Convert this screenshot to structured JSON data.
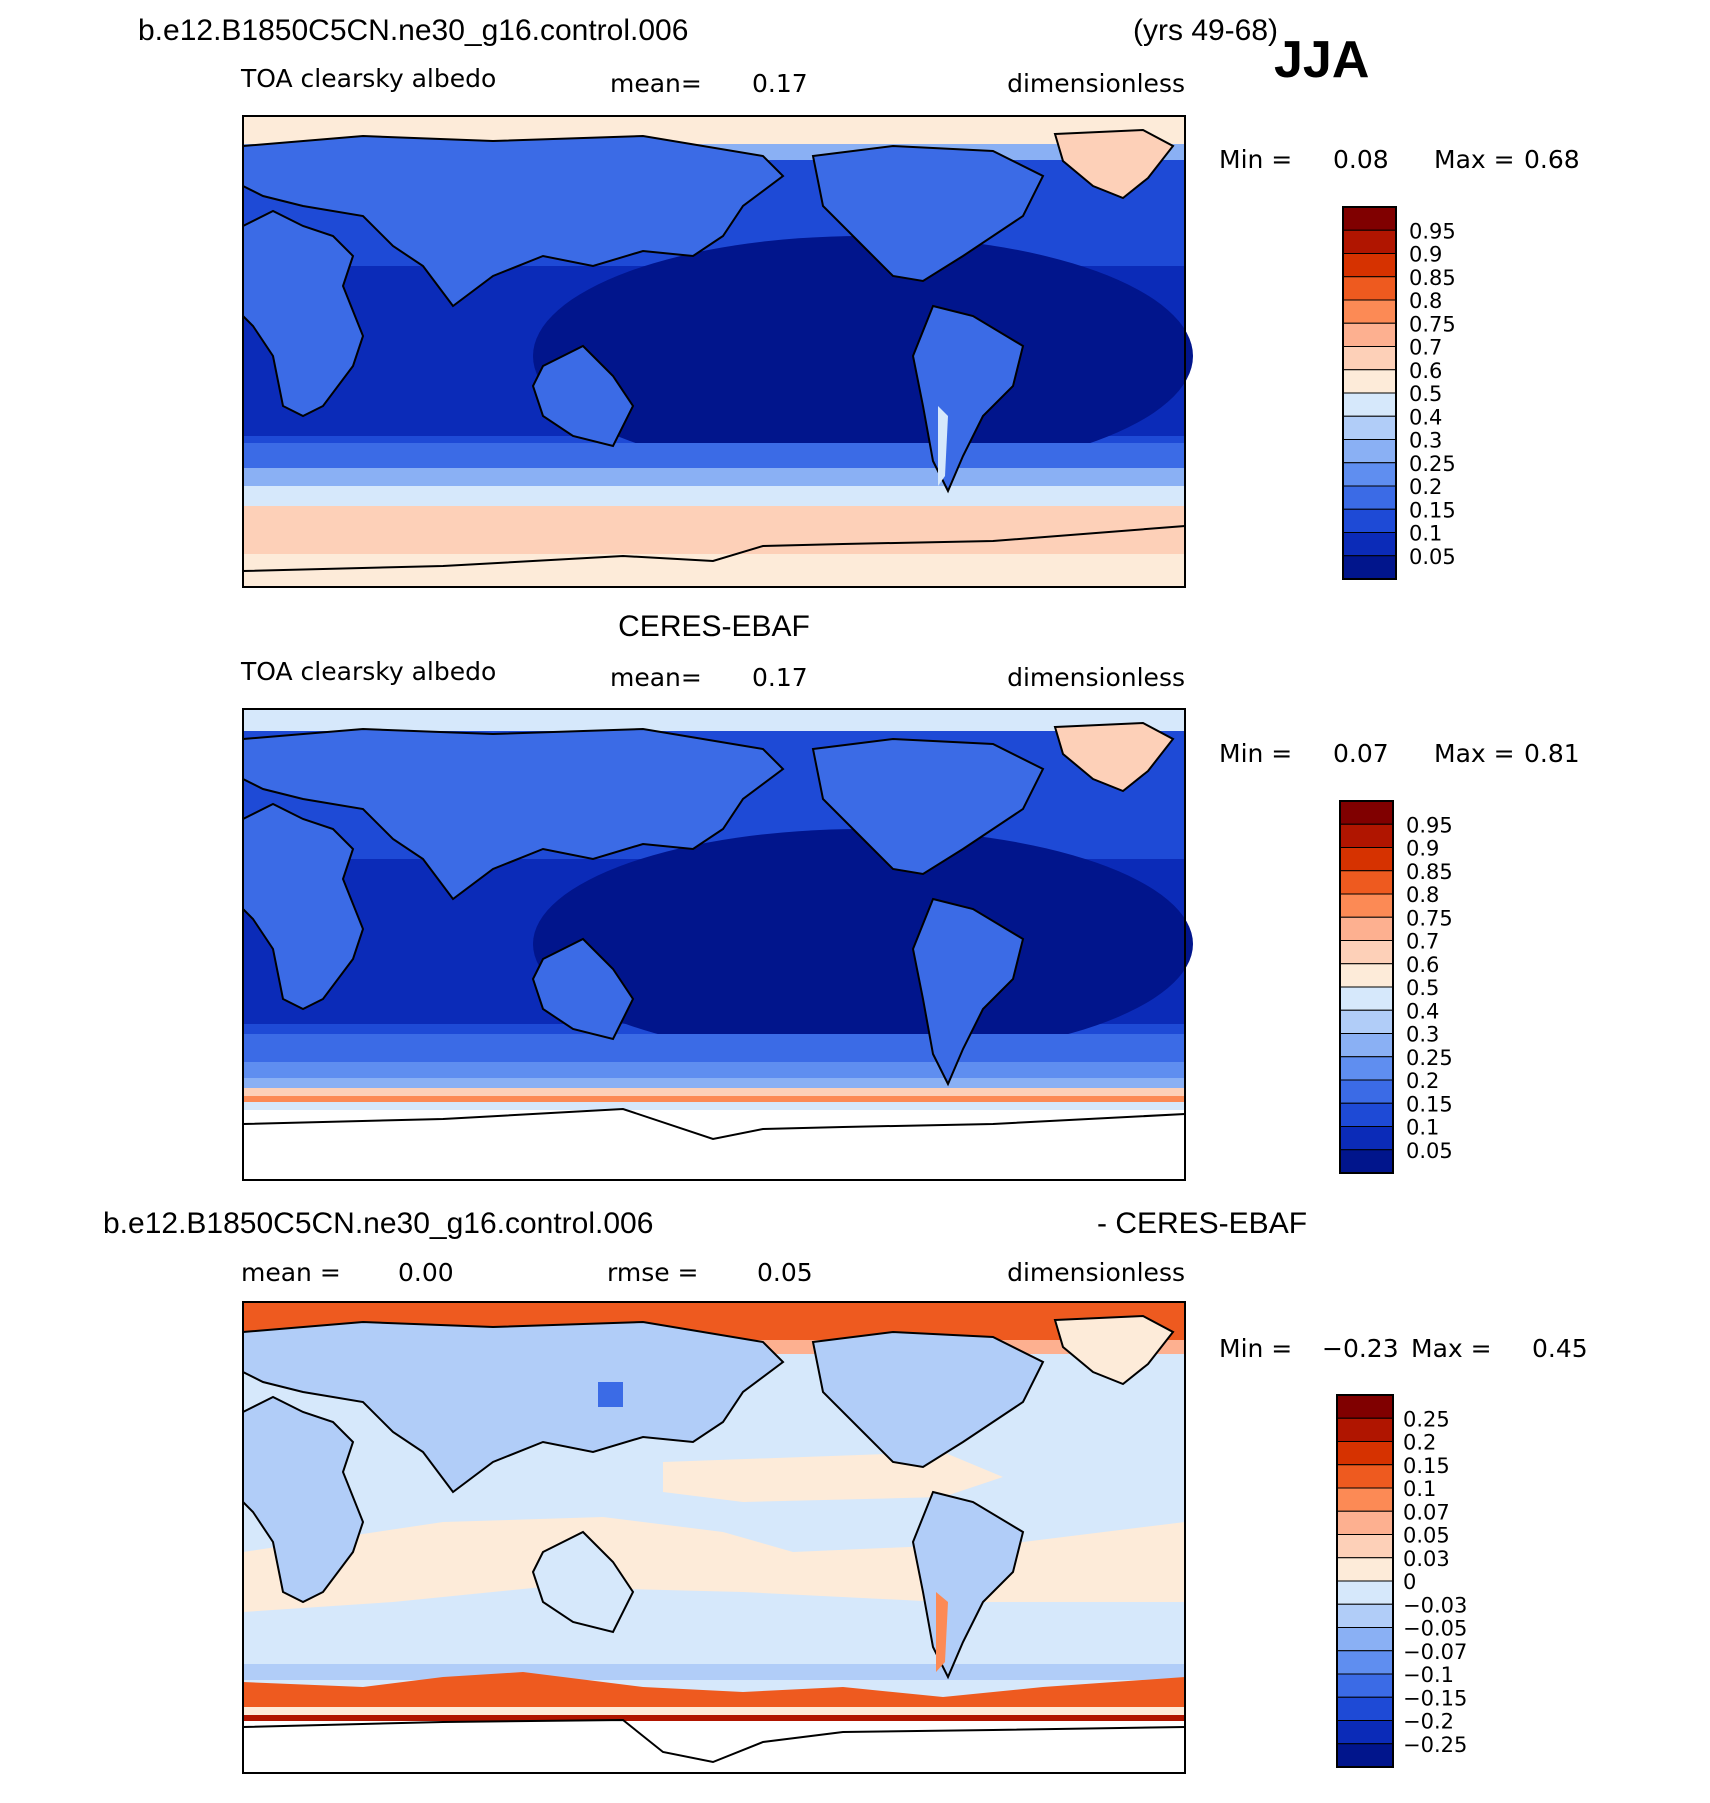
{
  "header": {
    "case_name": "b.e12.B1850C5CN.ne30_g16.control.006",
    "years": "(yrs 49-68)",
    "season": "JJA"
  },
  "panels": [
    {
      "id": "model",
      "title": "",
      "left_label": "TOA clearsky albedo",
      "stat_label": "mean=",
      "stat_value": "0.17",
      "units": "dimensionless",
      "min_label": "Min =",
      "min_value": "0.08",
      "max_label": "Max =",
      "max_value": "0.68",
      "colorbar_labels": [
        "0.95",
        "0.9",
        "0.85",
        "0.8",
        "0.75",
        "0.7",
        "0.6",
        "0.5",
        "0.4",
        "0.3",
        "0.25",
        "0.2",
        "0.15",
        "0.1",
        "0.05"
      ]
    },
    {
      "id": "obs",
      "title": "CERES-EBAF",
      "left_label": "TOA clearsky albedo",
      "stat_label": "mean=",
      "stat_value": "0.17",
      "units": "dimensionless",
      "min_label": "Min =",
      "min_value": "0.07",
      "max_label": "Max =",
      "max_value": "0.81",
      "colorbar_labels": [
        "0.95",
        "0.9",
        "0.85",
        "0.8",
        "0.75",
        "0.7",
        "0.6",
        "0.5",
        "0.4",
        "0.3",
        "0.25",
        "0.2",
        "0.15",
        "0.1",
        "0.05"
      ]
    },
    {
      "id": "diff",
      "title_left": "b.e12.B1850C5CN.ne30_g16.control.006",
      "title_right": "- CERES-EBAF",
      "left_label": "mean =",
      "left_value": "0.00",
      "stat_label": "rmse =",
      "stat_value": "0.05",
      "units": "dimensionless",
      "min_label": "Min =",
      "min_value": "−0.23",
      "max_label": "Max =",
      "max_value": "0.45",
      "colorbar_labels": [
        "0.25",
        "0.2",
        "0.15",
        "0.1",
        "0.07",
        "0.05",
        "0.03",
        "0",
        "−0.03",
        "−0.05",
        "−0.07",
        "−0.1",
        "−0.15",
        "−0.2",
        "−0.25"
      ]
    }
  ],
  "colors": {
    "abs_scale": [
      "#800000",
      "#b01500",
      "#d63200",
      "#ee5a1f",
      "#fc8a55",
      "#fdb090",
      "#fdd0b8",
      "#fdebd9",
      "#d6e8fb",
      "#b1cdf8",
      "#8ab0f4",
      "#5f8ef0",
      "#3b6be6",
      "#1e4ad6",
      "#0b2bb8",
      "#01158c"
    ],
    "diff_scale": [
      "#800000",
      "#b01500",
      "#d63200",
      "#ee5a1f",
      "#fc8a55",
      "#fdb090",
      "#fdd0b8",
      "#fdebd9",
      "#d6e8fb",
      "#b1cdf8",
      "#8ab0f4",
      "#5f8ef0",
      "#3b6be6",
      "#1e4ad6",
      "#0b2bb8",
      "#01158c"
    ]
  }
}
